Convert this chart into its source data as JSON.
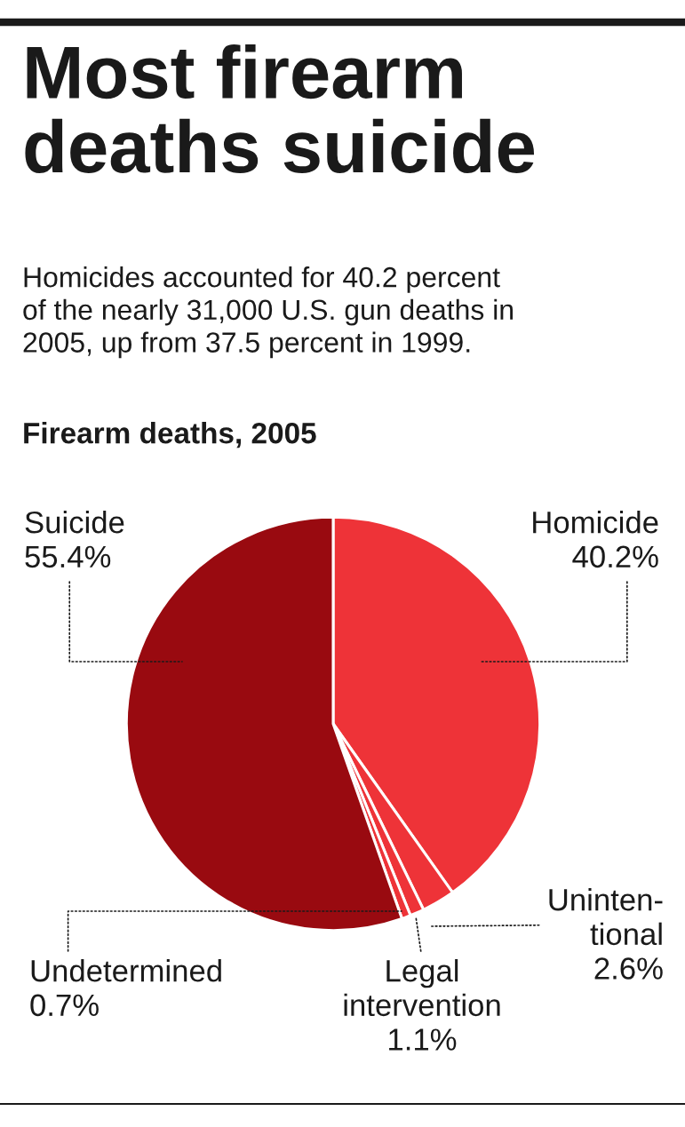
{
  "chart_data": {
    "type": "pie",
    "title": "Most firearm\ndeaths suicide",
    "subtitle": "Homicides accounted for 40.2 percent\nof the nearly 31,000 U.S. gun deaths in\n2005, up from 37.5 percent in 1999.",
    "annotations": [
      "Firearm deaths, 2005"
    ],
    "categories": [
      "Homicide",
      "Uninten-\ntional",
      "Legal\nintervention",
      "Undetermined",
      "Suicide"
    ],
    "values": [
      40.2,
      2.6,
      1.1,
      0.7,
      55.4
    ],
    "value_labels": [
      "40.2%",
      "2.6%",
      "1.1%",
      "0.7%",
      "55.4%"
    ],
    "colors": [
      "#ee3338",
      "#ee3338",
      "#ee3338",
      "#ee3338",
      "#990a10"
    ]
  }
}
